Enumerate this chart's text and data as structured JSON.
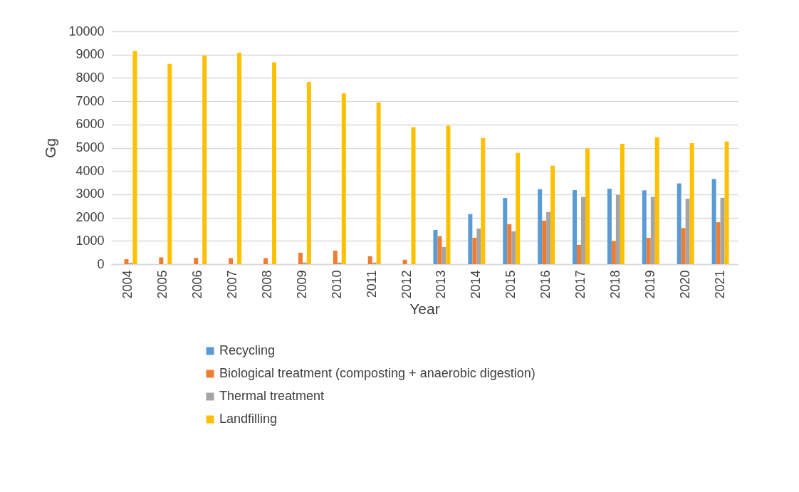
{
  "chart_data": {
    "type": "bar",
    "xlabel": "Year",
    "ylabel": "Gg",
    "categories": [
      "2004",
      "2005",
      "2006",
      "2007",
      "2008",
      "2009",
      "2010",
      "2011",
      "2012",
      "2013",
      "2014",
      "2015",
      "2016",
      "2017",
      "2018",
      "2019",
      "2020",
      "2021"
    ],
    "series": [
      {
        "name": "Recycling",
        "color": "#5b9bd5",
        "values": [
          null,
          null,
          null,
          null,
          null,
          null,
          null,
          null,
          null,
          1470,
          2150,
          2840,
          3220,
          3180,
          3240,
          3170,
          3470,
          3660
        ]
      },
      {
        "name": "Biological treatment (composting + anaerobic digestion)",
        "color": "#ed7d31",
        "values": [
          210,
          290,
          270,
          260,
          260,
          490,
          580,
          340,
          190,
          1200,
          1130,
          1720,
          1870,
          830,
          990,
          1130,
          1550,
          1800
        ]
      },
      {
        "name": "Thermal treatment",
        "color": "#a5a5a5",
        "values": [
          60,
          null,
          null,
          null,
          null,
          70,
          70,
          70,
          null,
          740,
          1530,
          1410,
          2240,
          2890,
          2980,
          2890,
          2810,
          2850
        ]
      },
      {
        "name": "Landfilling",
        "color": "#ffc000",
        "values": [
          9160,
          8600,
          8960,
          9080,
          8670,
          7830,
          7340,
          6940,
          5880,
          5950,
          5410,
          4780,
          4230,
          4970,
          5170,
          5450,
          5200,
          5270
        ]
      }
    ],
    "ylim": [
      0,
      10000
    ],
    "yticks": [
      0,
      1000,
      2000,
      3000,
      4000,
      5000,
      6000,
      7000,
      8000,
      9000,
      10000
    ],
    "grid": "y",
    "legend": "bottom"
  }
}
